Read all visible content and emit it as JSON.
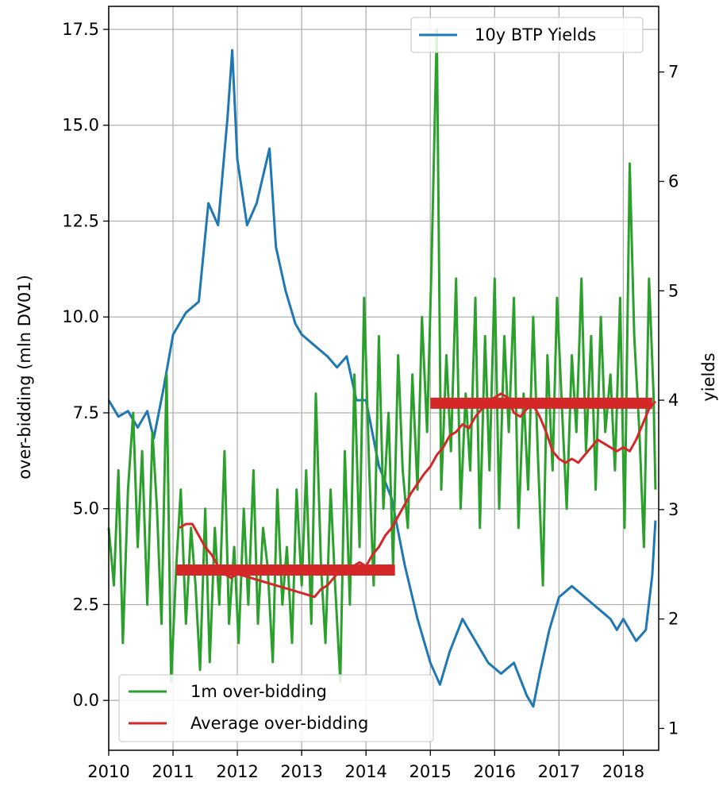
{
  "chart_data": {
    "type": "line",
    "title": "",
    "x_axis": {
      "label": "",
      "ticks": [
        "2010",
        "2011",
        "2012",
        "2013",
        "2014",
        "2015",
        "2016",
        "2017",
        "2018"
      ],
      "range": [
        2010.0,
        2018.55
      ]
    },
    "y_left": {
      "label": "over-bidding (mln DV01)",
      "ticks": [
        "0.0",
        "2.5",
        "5.0",
        "7.5",
        "10.0",
        "12.5",
        "15.0",
        "17.5"
      ],
      "range": [
        -1.3,
        18.1
      ]
    },
    "y_right": {
      "label": "yields",
      "ticks": [
        "1",
        "2",
        "3",
        "4",
        "5",
        "6",
        "7"
      ],
      "range": [
        0.8,
        7.6
      ]
    },
    "grid": true,
    "legend_top_right": {
      "entries": [
        "10y BTP Yields"
      ]
    },
    "legend_bottom_left": {
      "entries": [
        "1m over-bidding",
        "Average over-bidding"
      ]
    },
    "series": [
      {
        "name": "10y BTP Yields",
        "axis": "right",
        "color": "#1f77b4",
        "x": [
          2010.0,
          2010.15,
          2010.3,
          2010.45,
          2010.6,
          2010.7,
          2010.85,
          2011.0,
          2011.2,
          2011.4,
          2011.55,
          2011.7,
          2011.85,
          2011.92,
          2012.0,
          2012.15,
          2012.3,
          2012.5,
          2012.6,
          2012.75,
          2012.9,
          2013.0,
          2013.2,
          2013.4,
          2013.55,
          2013.7,
          2013.85,
          2014.0,
          2014.2,
          2014.4,
          2014.6,
          2014.8,
          2015.0,
          2015.15,
          2015.3,
          2015.5,
          2015.7,
          2015.9,
          2016.1,
          2016.3,
          2016.5,
          2016.6,
          2016.7,
          2016.85,
          2017.0,
          2017.2,
          2017.4,
          2017.6,
          2017.8,
          2017.9,
          2018.0,
          2018.2,
          2018.35,
          2018.45,
          2018.5
        ],
        "y": [
          4.0,
          3.85,
          3.9,
          3.75,
          3.9,
          3.65,
          4.1,
          4.6,
          4.8,
          4.9,
          5.8,
          5.6,
          6.6,
          7.2,
          6.2,
          5.6,
          5.8,
          6.3,
          5.4,
          5.0,
          4.7,
          4.6,
          4.5,
          4.4,
          4.3,
          4.4,
          4.0,
          4.0,
          3.4,
          3.1,
          2.5,
          2.0,
          1.6,
          1.4,
          1.7,
          2.0,
          1.8,
          1.6,
          1.5,
          1.6,
          1.3,
          1.2,
          1.5,
          1.9,
          2.2,
          2.3,
          2.2,
          2.1,
          2.0,
          1.9,
          2.0,
          1.8,
          1.9,
          2.4,
          2.9
        ]
      },
      {
        "name": "1m over-bidding",
        "axis": "left",
        "color": "#2ca02c",
        "x": [
          2010.0,
          2010.08,
          2010.15,
          2010.22,
          2010.3,
          2010.38,
          2010.45,
          2010.52,
          2010.6,
          2010.68,
          2010.75,
          2010.82,
          2010.9,
          2010.97,
          2011.05,
          2011.12,
          2011.2,
          2011.28,
          2011.35,
          2011.42,
          2011.5,
          2011.57,
          2011.65,
          2011.72,
          2011.8,
          2011.87,
          2011.95,
          2012.02,
          2012.1,
          2012.17,
          2012.25,
          2012.32,
          2012.4,
          2012.47,
          2012.55,
          2012.62,
          2012.7,
          2012.77,
          2012.85,
          2012.92,
          2013.0,
          2013.07,
          2013.15,
          2013.22,
          2013.3,
          2013.37,
          2013.45,
          2013.52,
          2013.6,
          2013.67,
          2013.75,
          2013.82,
          2013.9,
          2013.97,
          2014.05,
          2014.12,
          2014.2,
          2014.27,
          2014.35,
          2014.42,
          2014.5,
          2014.57,
          2014.65,
          2014.72,
          2014.8,
          2014.87,
          2014.95,
          2015.02,
          2015.1,
          2015.17,
          2015.25,
          2015.32,
          2015.4,
          2015.47,
          2015.55,
          2015.62,
          2015.7,
          2015.77,
          2015.85,
          2015.92,
          2016.0,
          2016.07,
          2016.15,
          2016.22,
          2016.3,
          2016.37,
          2016.45,
          2016.52,
          2016.6,
          2016.67,
          2016.75,
          2016.82,
          2016.9,
          2016.97,
          2017.05,
          2017.12,
          2017.2,
          2017.27,
          2017.35,
          2017.42,
          2017.5,
          2017.57,
          2017.65,
          2017.72,
          2017.8,
          2017.87,
          2017.95,
          2018.02,
          2018.1,
          2018.17,
          2018.25,
          2018.32,
          2018.4,
          2018.47,
          2018.5
        ],
        "y": [
          4.5,
          3.0,
          6.0,
          1.5,
          5.5,
          7.5,
          4.0,
          6.5,
          2.5,
          7.0,
          5.0,
          2.0,
          8.5,
          0.5,
          3.5,
          5.5,
          2.0,
          4.5,
          3.0,
          0.8,
          5.0,
          1.0,
          4.5,
          2.5,
          6.5,
          2.0,
          4.0,
          1.5,
          5.0,
          2.5,
          6.0,
          2.0,
          4.5,
          3.5,
          1.0,
          5.5,
          2.5,
          4.0,
          1.5,
          5.5,
          3.0,
          6.0,
          2.0,
          8.0,
          3.5,
          1.5,
          5.5,
          3.0,
          0.5,
          6.5,
          2.5,
          8.5,
          4.0,
          10.5,
          6.0,
          3.0,
          9.5,
          5.0,
          7.5,
          3.5,
          9.0,
          6.0,
          4.5,
          8.5,
          5.5,
          10.0,
          7.0,
          11.5,
          17.5,
          5.5,
          9.0,
          6.5,
          11.0,
          5.0,
          8.0,
          6.0,
          10.5,
          4.5,
          9.5,
          6.0,
          11.0,
          5.0,
          9.5,
          7.0,
          10.5,
          4.5,
          8.0,
          5.5,
          10.0,
          6.5,
          3.0,
          9.0,
          6.0,
          10.5,
          7.5,
          5.0,
          9.0,
          7.0,
          11.0,
          6.5,
          9.5,
          5.5,
          10.0,
          7.0,
          8.5,
          6.0,
          10.5,
          4.5,
          14.0,
          9.5,
          7.0,
          4.0,
          11.0,
          8.0,
          5.5
        ]
      },
      {
        "name": "Average over-bidding",
        "axis": "left",
        "color": "#d62728",
        "x": [
          2011.1,
          2011.2,
          2011.3,
          2011.4,
          2011.5,
          2011.6,
          2011.7,
          2011.8,
          2011.9,
          2012.0,
          2012.2,
          2012.4,
          2012.6,
          2012.8,
          2013.0,
          2013.2,
          2013.3,
          2013.4,
          2013.5,
          2013.6,
          2013.7,
          2013.8,
          2013.9,
          2014.0,
          2014.1,
          2014.2,
          2014.3,
          2014.4,
          2014.5,
          2014.7,
          2014.9,
          2015.0,
          2015.1,
          2015.2,
          2015.3,
          2015.4,
          2015.5,
          2015.6,
          2015.7,
          2015.8,
          2015.9,
          2016.0,
          2016.1,
          2016.2,
          2016.3,
          2016.4,
          2016.5,
          2016.6,
          2016.7,
          2016.8,
          2016.9,
          2017.0,
          2017.1,
          2017.2,
          2017.3,
          2017.4,
          2017.5,
          2017.6,
          2017.7,
          2017.8,
          2017.9,
          2018.0,
          2018.1,
          2018.2,
          2018.3,
          2018.4,
          2018.5
        ],
        "y": [
          4.5,
          4.6,
          4.6,
          4.3,
          4.0,
          3.8,
          3.5,
          3.3,
          3.2,
          3.3,
          3.2,
          3.1,
          3.0,
          2.9,
          2.8,
          2.7,
          2.9,
          3.0,
          3.2,
          3.4,
          3.4,
          3.5,
          3.6,
          3.5,
          3.8,
          4.0,
          4.3,
          4.5,
          4.8,
          5.4,
          5.9,
          6.1,
          6.4,
          6.6,
          6.9,
          7.0,
          7.2,
          7.1,
          7.4,
          7.6,
          7.8,
          7.9,
          8.0,
          7.9,
          7.5,
          7.4,
          7.6,
          7.7,
          7.4,
          7.0,
          6.5,
          6.3,
          6.2,
          6.3,
          6.2,
          6.4,
          6.6,
          6.8,
          6.7,
          6.6,
          6.5,
          6.6,
          6.5,
          6.8,
          7.2,
          7.6,
          7.8
        ]
      },
      {
        "name": "",
        "axis": "left",
        "color": "#d62728",
        "segment": true,
        "x": [
          2011.05,
          2014.45
        ],
        "y": [
          3.4,
          3.4
        ]
      },
      {
        "name": "",
        "axis": "left",
        "color": "#d62728",
        "segment": true,
        "x": [
          2015.0,
          2018.45
        ],
        "y": [
          7.75,
          7.75
        ]
      }
    ]
  }
}
